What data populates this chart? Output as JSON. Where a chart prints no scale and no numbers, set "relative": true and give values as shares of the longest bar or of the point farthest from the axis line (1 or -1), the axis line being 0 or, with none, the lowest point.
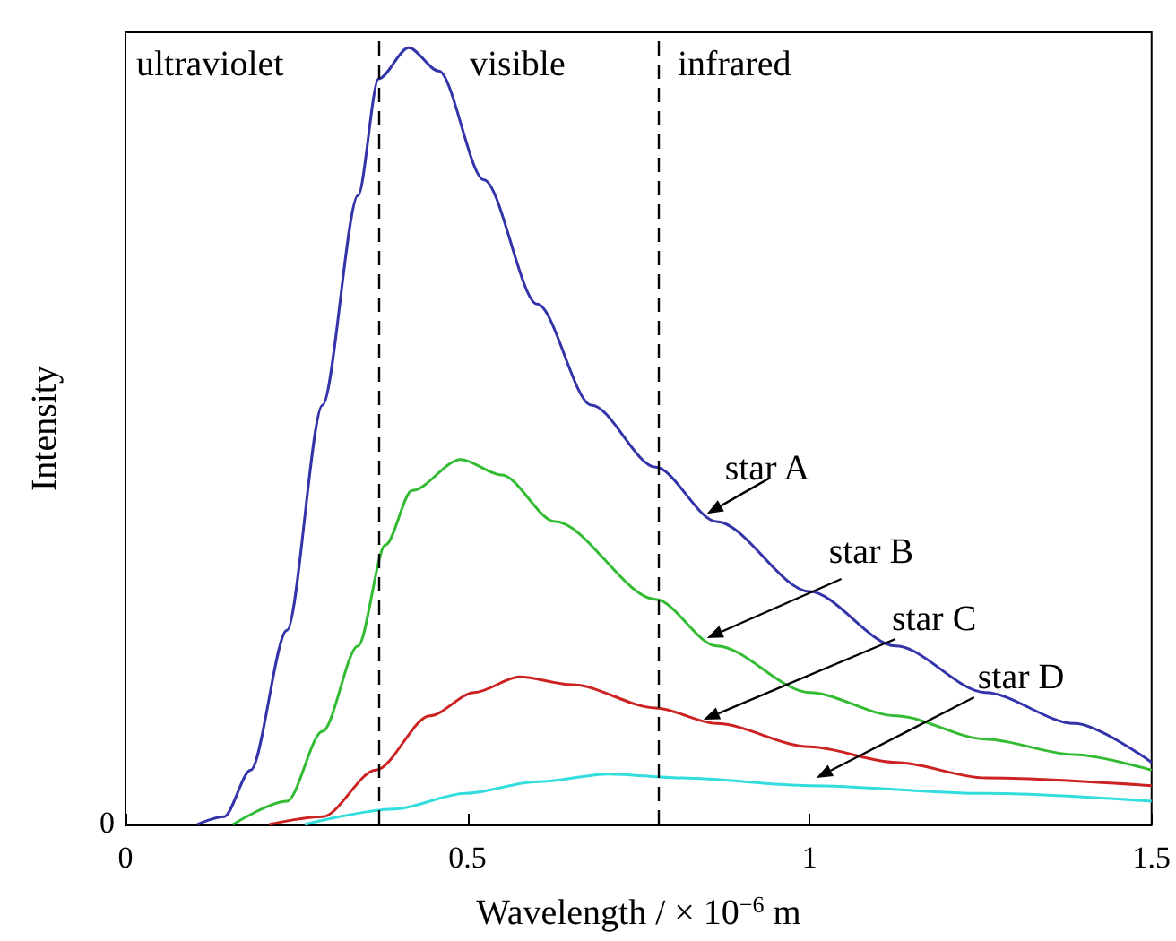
{
  "chart_data": {
    "type": "line",
    "relative": true,
    "xlabel": "Wavelength / × 10$^{−6}$ m",
    "ylabel": "Intensity",
    "xlim": [
      0,
      1.5
    ],
    "xticks": [
      0,
      0.5,
      1,
      1.5
    ],
    "grid": false,
    "marker": "none",
    "line_style": "solid",
    "series": [
      {
        "color": "#3333aa",
        "x": [
          0.105,
          0.144,
          0.183,
          0.236,
          0.288,
          0.34,
          0.37,
          0.414,
          0.458,
          0.524,
          0.602,
          0.681,
          0.775,
          0.864,
          1.0,
          1.126,
          1.257,
          1.387,
          1.5
        ],
        "values": [
          0,
          0.01,
          0.07,
          0.25,
          0.54,
          0.81,
          0.96,
          1,
          0.97,
          0.83,
          0.67,
          0.54,
          0.46,
          0.39,
          0.3,
          0.23,
          0.17,
          0.13,
          0.08
        ]
      },
      {
        "color": "#33bb33",
        "x": [
          0.157,
          0.236,
          0.288,
          0.34,
          0.38,
          0.419,
          0.49,
          0.55,
          0.628,
          0.775,
          0.864,
          1.0,
          1.126,
          1.257,
          1.387,
          1.5
        ],
        "values": [
          0,
          0.03,
          0.12,
          0.23,
          0.36,
          0.43,
          0.47,
          0.45,
          0.39,
          0.29,
          0.23,
          0.17,
          0.14,
          0.11,
          0.09,
          0.07
        ]
      },
      {
        "color": "#cc2222",
        "x": [
          0.21,
          0.288,
          0.366,
          0.445,
          0.51,
          0.576,
          0.654,
          0.775,
          0.864,
          1.0,
          1.126,
          1.257,
          1.5
        ],
        "values": [
          0,
          0.01,
          0.07,
          0.14,
          0.17,
          0.19,
          0.18,
          0.15,
          0.13,
          0.1,
          0.08,
          0.06,
          0.05
        ]
      },
      {
        "color": "#33dddd",
        "x": [
          0.262,
          0.393,
          0.497,
          0.602,
          0.707,
          0.81,
          1.0,
          1.257,
          1.5
        ],
        "values": [
          0,
          0.02,
          0.04,
          0.055,
          0.065,
          0.06,
          0.05,
          0.04,
          0.03
        ]
      }
    ],
    "ref_lines": [
      {
        "axis": "x",
        "value": 0.37,
        "color": "#000000",
        "line_style": "dashed"
      },
      {
        "axis": "x",
        "value": 0.775,
        "color": "#000000",
        "line_style": "dashed"
      }
    ],
    "annotations": [
      "ultraviolet",
      "visible",
      "infrared",
      "0",
      {
        "text": "star A",
        "x": 0.85,
        "y": 0.4
      },
      {
        "text": "star B",
        "x": 0.85,
        "y": 0.24
      },
      {
        "text": "star C",
        "x": 0.845,
        "y": 0.135
      },
      {
        "text": "star D",
        "x": 1.01,
        "y": 0.06
      }
    ]
  }
}
